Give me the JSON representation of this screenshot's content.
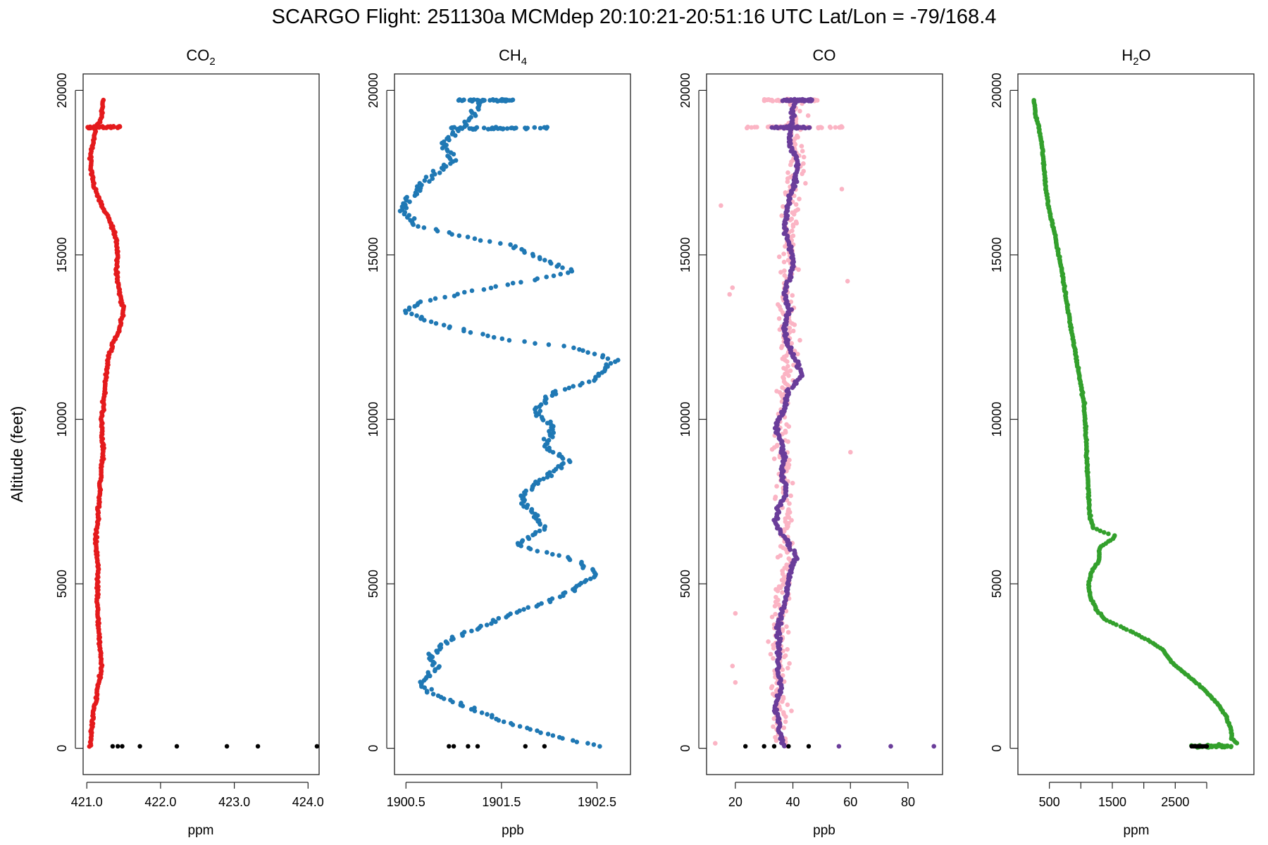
{
  "figure": {
    "title": "SCARGO Flight: 251130a  MCMdep  20:10:21-20:51:16 UTC  Lat/Lon = -79/168.4",
    "ylabel": "Altitude (feet)"
  },
  "chart_data": [
    {
      "type": "scatter",
      "title": "CO2",
      "title_main": "CO",
      "title_sub": "2",
      "xlabel": "ppm",
      "ylabel": "Altitude (feet)",
      "xlim": [
        420.95,
        424.15
      ],
      "ylim": [
        -800,
        20500
      ],
      "xticks": [
        421.0,
        422.0,
        423.0,
        424.0
      ],
      "xtick_labels": [
        "421.0",
        "422.0",
        "423.0",
        "424.0"
      ],
      "yticks": [
        0,
        5000,
        10000,
        15000,
        20000
      ],
      "ytick_labels": [
        "0",
        "5000",
        "10000",
        "15000",
        "20000"
      ],
      "grid": false,
      "series": [
        {
          "color": "#e41a1c",
          "profile": [
            [
              19700,
              421.22
            ],
            [
              19200,
              421.2
            ],
            [
              18850,
              421.12
            ],
            [
              18000,
              421.05
            ],
            [
              17200,
              421.08
            ],
            [
              16500,
              421.2
            ],
            [
              16000,
              421.32
            ],
            [
              15500,
              421.4
            ],
            [
              15000,
              421.42
            ],
            [
              14400,
              421.4
            ],
            [
              13800,
              421.45
            ],
            [
              13300,
              421.5
            ],
            [
              12800,
              421.45
            ],
            [
              12300,
              421.35
            ],
            [
              11800,
              421.28
            ],
            [
              11000,
              421.25
            ],
            [
              10000,
              421.2
            ],
            [
              9000,
              421.22
            ],
            [
              8000,
              421.18
            ],
            [
              7000,
              421.15
            ],
            [
              6300,
              421.12
            ],
            [
              5500,
              421.15
            ],
            [
              4500,
              421.14
            ],
            [
              3500,
              421.16
            ],
            [
              2500,
              421.2
            ],
            [
              1800,
              421.15
            ],
            [
              1200,
              421.1
            ],
            [
              500,
              421.06
            ],
            [
              50,
              421.05
            ]
          ],
          "spread": 0.025,
          "spikes": [
            [
              18880,
              420.99,
              421.45
            ]
          ]
        },
        {
          "color": "#000000",
          "points": [
            [
              60,
              421.35
            ],
            [
              60,
              421.42
            ],
            [
              60,
              421.48
            ],
            [
              60,
              421.72
            ],
            [
              60,
              422.22
            ],
            [
              60,
              422.9
            ],
            [
              60,
              423.32
            ],
            [
              60,
              424.12
            ]
          ]
        }
      ]
    },
    {
      "type": "scatter",
      "title": "CH4",
      "title_main": "CH",
      "title_sub": "4",
      "xlabel": "ppb",
      "ylabel": "Altitude (feet)",
      "xlim": [
        1900.38,
        1902.85
      ],
      "ylim": [
        -800,
        20500
      ],
      "xticks": [
        1900.5,
        1901.5,
        1902.5
      ],
      "xtick_labels": [
        "1900.5",
        "1901.5",
        "1902.5"
      ],
      "yticks": [
        0,
        5000,
        10000,
        15000,
        20000
      ],
      "ytick_labels": [
        "0",
        "5000",
        "10000",
        "15000",
        "20000"
      ],
      "grid": false,
      "series": [
        {
          "color": "#1f78b4",
          "profile": [
            [
              19700,
              1901.3
            ],
            [
              19300,
              1901.2
            ],
            [
              18880,
              1901.1
            ],
            [
              18400,
              1900.9
            ],
            [
              17900,
              1901.0
            ],
            [
              17400,
              1900.75
            ],
            [
              16900,
              1900.6
            ],
            [
              16400,
              1900.45
            ],
            [
              15900,
              1900.6
            ],
            [
              15600,
              1901.05
            ],
            [
              15300,
              1901.6
            ],
            [
              14900,
              1901.9
            ],
            [
              14500,
              1902.25
            ],
            [
              14200,
              1901.75
            ],
            [
              13900,
              1901.2
            ],
            [
              13600,
              1900.7
            ],
            [
              13300,
              1900.5
            ],
            [
              13000,
              1900.7
            ],
            [
              12700,
              1901.1
            ],
            [
              12400,
              1901.6
            ],
            [
              12200,
              1902.2
            ],
            [
              11800,
              1902.7
            ],
            [
              11200,
              1902.45
            ],
            [
              10800,
              1902.05
            ],
            [
              10200,
              1901.85
            ],
            [
              9700,
              1902.05
            ],
            [
              9200,
              1901.95
            ],
            [
              8700,
              1902.2
            ],
            [
              8200,
              1901.95
            ],
            [
              7700,
              1901.7
            ],
            [
              7200,
              1901.8
            ],
            [
              6700,
              1901.95
            ],
            [
              6200,
              1901.65
            ],
            [
              5700,
              1902.3
            ],
            [
              5300,
              1902.5
            ],
            [
              4900,
              1902.3
            ],
            [
              4500,
              1902.0
            ],
            [
              4100,
              1901.65
            ],
            [
              3700,
              1901.3
            ],
            [
              3300,
              1900.95
            ],
            [
              2800,
              1900.75
            ],
            [
              2400,
              1900.85
            ],
            [
              2000,
              1900.65
            ],
            [
              1600,
              1900.8
            ],
            [
              1200,
              1901.2
            ],
            [
              800,
              1901.55
            ],
            [
              500,
              1901.9
            ],
            [
              200,
              1902.3
            ],
            [
              60,
              1902.5
            ]
          ],
          "spread": 0.08,
          "spikes": [
            [
              18850,
              1900.95,
              1902.0
            ],
            [
              19700,
              1901.05,
              1901.65
            ]
          ]
        },
        {
          "color": "#000000",
          "points": [
            [
              60,
              1900.95
            ],
            [
              60,
              1901.0
            ],
            [
              60,
              1901.15
            ],
            [
              60,
              1901.25
            ],
            [
              60,
              1901.75
            ],
            [
              60,
              1901.95
            ]
          ]
        }
      ]
    },
    {
      "type": "scatter",
      "title": "CO",
      "title_main": "CO",
      "title_sub": "",
      "xlabel": "ppb",
      "ylabel": "Altitude (feet)",
      "xlim": [
        10,
        92
      ],
      "ylim": [
        -800,
        20500
      ],
      "xticks": [
        20,
        40,
        60,
        80
      ],
      "xtick_labels": [
        "20",
        "40",
        "60",
        "80"
      ],
      "yticks": [
        0,
        5000,
        10000,
        15000,
        20000
      ],
      "ytick_labels": [
        "0",
        "5000",
        "10000",
        "15000",
        "20000"
      ],
      "grid": false,
      "series": [
        {
          "color": "#fbb4c4",
          "profile": [
            [
              19700,
              41
            ],
            [
              18880,
              40
            ],
            [
              18000,
              41
            ],
            [
              16000,
              39
            ],
            [
              14000,
              38
            ],
            [
              12000,
              39
            ],
            [
              10000,
              36
            ],
            [
              8000,
              37
            ],
            [
              6000,
              38
            ],
            [
              4000,
              36
            ],
            [
              2000,
              35
            ],
            [
              60,
              36
            ]
          ],
          "spread": 5.5,
          "spikes": [
            [
              18880,
              24,
              58
            ],
            [
              19700,
              30,
              50
            ]
          ],
          "points": [
            [
              16500,
              15
            ],
            [
              14000,
              19
            ],
            [
              13800,
              18
            ],
            [
              4100,
              20
            ],
            [
              2500,
              19
            ],
            [
              2000,
              20
            ],
            [
              9000,
              60
            ],
            [
              14200,
              59
            ],
            [
              17000,
              57
            ],
            [
              150,
              13
            ]
          ]
        },
        {
          "color": "#6a3d9a",
          "profile": [
            [
              19700,
              41
            ],
            [
              19300,
              40
            ],
            [
              18880,
              39
            ],
            [
              18300,
              39
            ],
            [
              17800,
              42
            ],
            [
              17300,
              41
            ],
            [
              16800,
              39
            ],
            [
              16300,
              38
            ],
            [
              15800,
              37
            ],
            [
              15300,
              39
            ],
            [
              14800,
              40
            ],
            [
              14300,
              39
            ],
            [
              13800,
              37
            ],
            [
              13300,
              39
            ],
            [
              12800,
              37
            ],
            [
              12300,
              38
            ],
            [
              11800,
              41
            ],
            [
              11300,
              43
            ],
            [
              10800,
              38
            ],
            [
              10300,
              37
            ],
            [
              9800,
              34
            ],
            [
              9300,
              36
            ],
            [
              8800,
              37
            ],
            [
              8300,
              36
            ],
            [
              7800,
              38
            ],
            [
              7300,
              35
            ],
            [
              6800,
              34
            ],
            [
              6300,
              38
            ],
            [
              5800,
              41
            ],
            [
              5300,
              39
            ],
            [
              4800,
              38
            ],
            [
              4300,
              37
            ],
            [
              3800,
              35
            ],
            [
              3300,
              35
            ],
            [
              2800,
              35
            ],
            [
              2300,
              35
            ],
            [
              1800,
              36
            ],
            [
              1300,
              34
            ],
            [
              800,
              35
            ],
            [
              300,
              36
            ],
            [
              60,
              37
            ]
          ],
          "spread": 1.2,
          "spikes": [
            [
              18880,
              32,
              46
            ],
            [
              19700,
              36,
              47
            ]
          ],
          "points": [
            [
              60,
              56
            ],
            [
              60,
              74
            ],
            [
              60,
              89
            ]
          ]
        },
        {
          "color": "#000000",
          "points": [
            [
              60,
              23.5
            ],
            [
              60,
              30
            ],
            [
              60,
              33.5
            ],
            [
              60,
              38.5
            ],
            [
              60,
              45.5
            ]
          ]
        }
      ]
    },
    {
      "type": "scatter",
      "title": "H2O",
      "title_main": "H",
      "title_sub": "2",
      "title_suffix": "O",
      "xlabel": "ppm",
      "ylabel": "Altitude (feet)",
      "xlim": [
        0,
        3750
      ],
      "ylim": [
        -800,
        20500
      ],
      "xticks": [
        500,
        1000,
        1500,
        2000,
        2500,
        3000
      ],
      "xtick_labels": [
        "500",
        "",
        "1500",
        "",
        "2500",
        ""
      ],
      "yticks": [
        0,
        5000,
        10000,
        15000,
        20000
      ],
      "ytick_labels": [
        "0",
        "5000",
        "10000",
        "15000",
        "20000"
      ],
      "grid": false,
      "series": [
        {
          "color": "#33a02c",
          "profile": [
            [
              19700,
              250
            ],
            [
              19300,
              280
            ],
            [
              18880,
              330
            ],
            [
              18400,
              380
            ],
            [
              17500,
              420
            ],
            [
              16500,
              480
            ],
            [
              15500,
              600
            ],
            [
              14500,
              700
            ],
            [
              13500,
              780
            ],
            [
              12500,
              870
            ],
            [
              11500,
              960
            ],
            [
              10500,
              1050
            ],
            [
              9500,
              1080
            ],
            [
              8500,
              1100
            ],
            [
              7500,
              1130
            ],
            [
              7000,
              1150
            ],
            [
              6700,
              1200
            ],
            [
              6550,
              1380
            ],
            [
              6450,
              1560
            ],
            [
              6300,
              1450
            ],
            [
              6100,
              1300
            ],
            [
              5700,
              1290
            ],
            [
              5400,
              1180
            ],
            [
              5000,
              1120
            ],
            [
              4600,
              1150
            ],
            [
              4200,
              1250
            ],
            [
              3900,
              1400
            ],
            [
              3600,
              1750
            ],
            [
              3300,
              2050
            ],
            [
              3000,
              2300
            ],
            [
              2600,
              2450
            ],
            [
              2200,
              2700
            ],
            [
              1800,
              2950
            ],
            [
              1400,
              3150
            ],
            [
              1000,
              3300
            ],
            [
              600,
              3380
            ],
            [
              300,
              3400
            ],
            [
              150,
              3480
            ],
            [
              60,
              2900
            ]
          ],
          "spread": 18,
          "spikes": [
            [
              60,
              2750,
              3400
            ]
          ]
        },
        {
          "color": "#000000",
          "points": [
            [
              60,
              2760
            ],
            [
              60,
              2790
            ],
            [
              60,
              2820
            ],
            [
              60,
              2850
            ],
            [
              60,
              2880
            ],
            [
              60,
              2910
            ],
            [
              60,
              2940
            ],
            [
              60,
              2970
            ],
            [
              60,
              3000
            ]
          ]
        }
      ]
    }
  ]
}
